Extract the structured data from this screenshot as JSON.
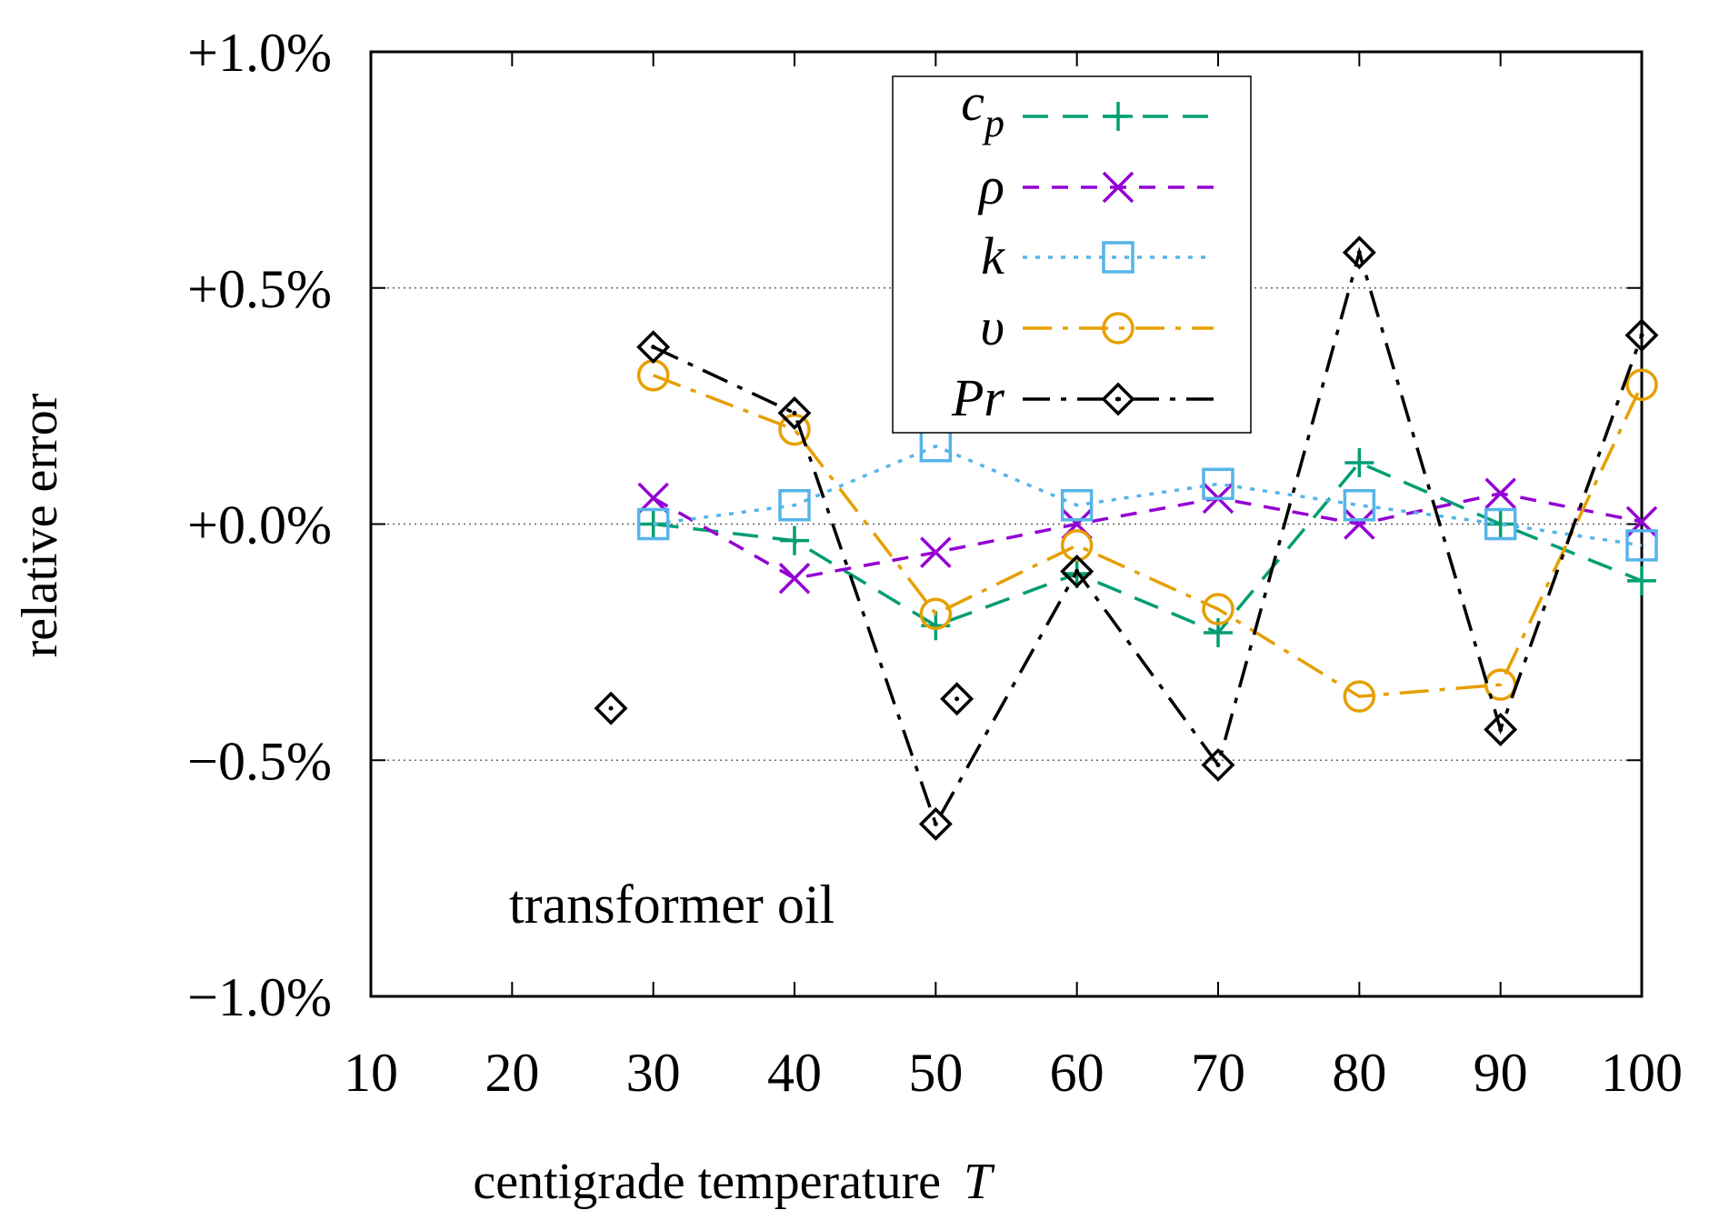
{
  "chart_data": {
    "type": "line",
    "title": "",
    "xlabel": "centigrade temperature",
    "xlabel_symbol": "T",
    "ylabel": "relative error",
    "annotation": "transformer oil",
    "xlim": [
      10,
      100
    ],
    "ylim": [
      -1.0,
      1.0
    ],
    "x_ticks": [
      10,
      20,
      30,
      40,
      50,
      60,
      70,
      80,
      90,
      100
    ],
    "x_tick_labels": [
      "10",
      "20",
      "30",
      "40",
      "50",
      "60",
      "70",
      "80",
      "90",
      "100"
    ],
    "y_ticks": [
      -1.0,
      -0.5,
      0.0,
      0.5,
      1.0
    ],
    "y_tick_labels": [
      "−1.0%",
      "−0.5%",
      "+0.0%",
      "+0.5%",
      "+1.0%"
    ],
    "grid_y": [
      -0.5,
      0.0,
      0.5
    ],
    "legend_position": "top-center",
    "series": [
      {
        "name": "c_p",
        "label_main": "c",
        "label_sub": "p",
        "color": "#009e73",
        "dash": "28,16",
        "marker": "plus",
        "x": [
          30,
          40,
          50,
          60,
          70,
          80,
          90,
          100
        ],
        "values": [
          0.0,
          -0.035,
          -0.215,
          -0.105,
          -0.23,
          0.13,
          0.0,
          -0.12
        ]
      },
      {
        "name": "rho",
        "label_main": "ρ",
        "color": "#9400d3",
        "dash": "18,14",
        "marker": "cross",
        "x": [
          30,
          40,
          50,
          60,
          70,
          80,
          90,
          100
        ],
        "values": [
          0.055,
          -0.115,
          -0.06,
          0.0,
          0.055,
          0.0,
          0.065,
          0.005
        ]
      },
      {
        "name": "k",
        "label_main": "k",
        "color": "#56b4e9",
        "dash": "5,9",
        "marker": "square",
        "x": [
          30,
          40,
          50,
          60,
          70,
          80,
          90,
          100
        ],
        "values": [
          0.0,
          0.04,
          0.165,
          0.04,
          0.085,
          0.04,
          0.0,
          -0.045
        ]
      },
      {
        "name": "nu",
        "label_main": "υ",
        "color": "#e69f00",
        "dash": "32,12,6,12",
        "marker": "circle",
        "x": [
          30,
          40,
          50,
          60,
          70,
          80,
          90,
          100
        ],
        "values": [
          0.315,
          0.2,
          -0.19,
          -0.045,
          -0.18,
          -0.365,
          -0.34,
          0.295
        ]
      },
      {
        "name": "Pr",
        "label_main": "Pr",
        "color": "#000000",
        "dash": "30,12,6,12",
        "marker": "diamond",
        "x": [
          30,
          40,
          50,
          60,
          70,
          80,
          90,
          100
        ],
        "values": [
          0.375,
          0.235,
          -0.635,
          -0.1,
          -0.51,
          0.575,
          -0.435,
          0.4
        ]
      }
    ],
    "extra_markers": [
      {
        "series": "Pr",
        "x": 27,
        "value": -0.39
      },
      {
        "series": "Pr",
        "x": 51.5,
        "value": -0.37
      }
    ]
  }
}
